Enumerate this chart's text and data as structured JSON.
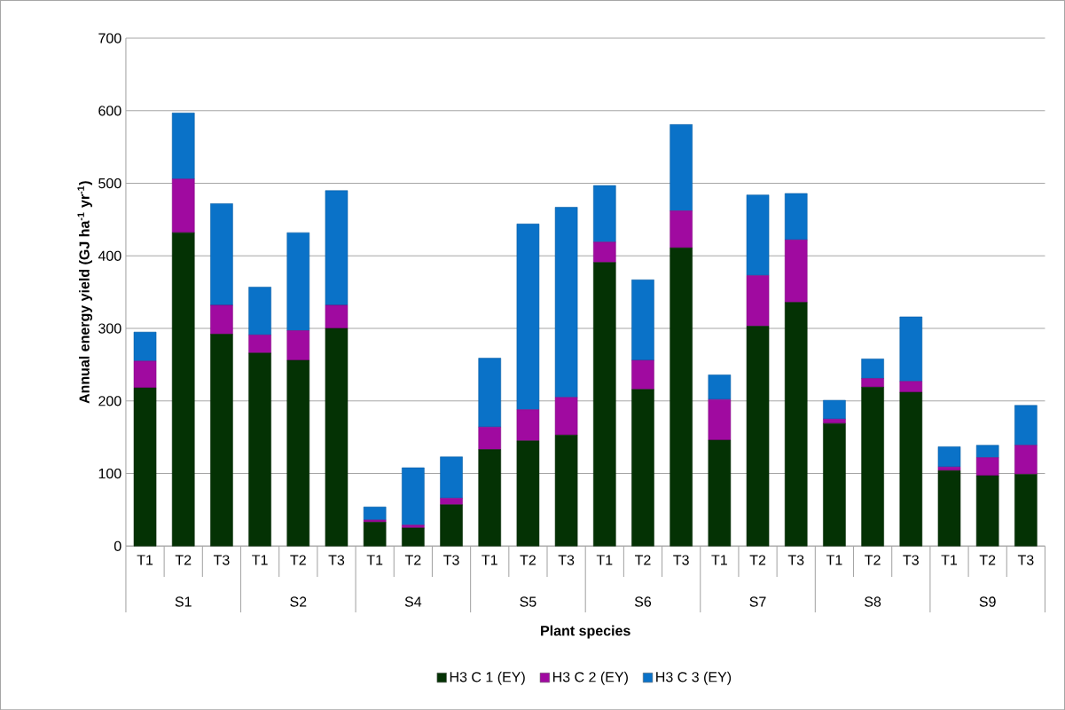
{
  "chart_data": {
    "type": "bar",
    "stacked": true,
    "xlabel": "Plant species",
    "ylabel": "Annual energy yield (GJ ha$^{-1}$ yr$^{-1}$)",
    "categories": [
      "T1",
      "T2",
      "T3",
      "T1",
      "T2",
      "T3",
      "T1",
      "T2",
      "T3",
      "T1",
      "T2",
      "T3",
      "T1",
      "T2",
      "T3",
      "T1",
      "T2",
      "T3",
      "T1",
      "T2",
      "T3",
      "T1",
      "T2",
      "T3"
    ],
    "annotations": [
      "S1",
      "S2",
      "S4",
      "S5",
      "S6",
      "S7",
      "S8",
      "S9"
    ],
    "series": [
      {
        "name": "H3 C 1 (EY)",
        "color": "#043204",
        "values": [
          218,
          432,
          292,
          266,
          256,
          300,
          33,
          25,
          57,
          133,
          145,
          153,
          391,
          216,
          411,
          146,
          303,
          336,
          169,
          219,
          212,
          104,
          97,
          99
        ]
      },
      {
        "name": "H3 C 2 (EY)",
        "color": "#a00aa0",
        "values": [
          37,
          74,
          40,
          25,
          41,
          32,
          3,
          4,
          9,
          31,
          43,
          52,
          28,
          40,
          51,
          56,
          70,
          86,
          6,
          12,
          15,
          5,
          25,
          40
        ]
      },
      {
        "name": "H3 C 3 (EY)",
        "color": "#0a72c8",
        "values": [
          40,
          91,
          140,
          66,
          135,
          158,
          18,
          79,
          57,
          95,
          256,
          262,
          78,
          111,
          119,
          34,
          111,
          64,
          26,
          27,
          89,
          28,
          17,
          55
        ]
      }
    ],
    "ylim": [
      0,
      700
    ],
    "yticks": [
      0,
      100,
      200,
      300,
      400,
      500,
      600,
      700
    ],
    "grid": "y",
    "legend": "bottom"
  }
}
